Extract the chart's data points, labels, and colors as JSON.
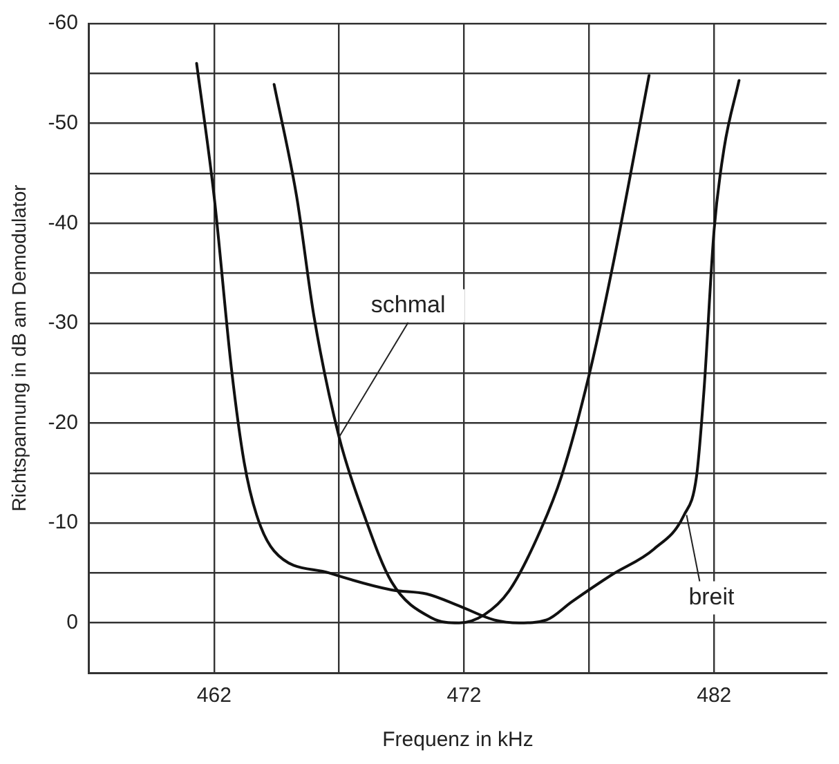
{
  "chart_data": {
    "type": "line",
    "xlabel": "Frequenz in kHz",
    "ylabel": "Richtspannung in dB am Demodulator",
    "xlim": [
      457,
      486.5
    ],
    "xticks": [
      462,
      {
        "value": 467,
        "label": null
      },
      472,
      {
        "value": 477,
        "label": null
      },
      482
    ],
    "ylim": [
      5,
      -60
    ],
    "yticks": [
      {
        "value": 5,
        "label": null
      },
      0,
      {
        "value": -5,
        "label": null
      },
      -10,
      {
        "value": -15,
        "label": null
      },
      -20,
      {
        "value": -25,
        "label": null
      },
      -30,
      {
        "value": -35,
        "label": null
      },
      -40,
      {
        "value": -45,
        "label": null
      },
      -50,
      {
        "value": -55,
        "label": null
      },
      -60
    ],
    "grid": true,
    "legend": false,
    "marker": "none",
    "line_style": "solid",
    "series": [
      {
        "color": "#111111",
        "x": [
          461.3,
          462,
          462.7,
          463.2,
          463.7,
          464.4,
          466.6,
          469.1,
          470.5,
          471.8,
          473.2,
          474.2,
          475.3,
          476.3,
          477.9,
          479.6,
          480.8,
          481.3,
          481.6,
          482,
          482.4,
          483
        ],
        "values": [
          -56,
          -42.7,
          -25.3,
          -16.1,
          -10.8,
          -7.2,
          -5,
          -3.3,
          -2.9,
          -1.7,
          -0.3,
          0,
          -0.3,
          -2.1,
          -4.8,
          -7.4,
          -10.8,
          -14.7,
          -23.4,
          -39.3,
          -47.5,
          -54.3
        ]
      },
      {
        "color": "#111111",
        "x": [
          464.4,
          465.3,
          466,
          467,
          468,
          469.1,
          470.7,
          471.8,
          472.8,
          473.8,
          474.9,
          475.9,
          477,
          478,
          479.4
        ],
        "values": [
          -53.9,
          -42.7,
          -30.6,
          -18.6,
          -10.8,
          -4.1,
          -0.5,
          0,
          -0.8,
          -3.2,
          -8.4,
          -14.7,
          -24.8,
          -36.4,
          -54.8
        ]
      }
    ],
    "annotations": [
      {
        "text": "schmal",
        "x": 467,
        "y": -18.6
      },
      {
        "text": "breit",
        "x": 480.9,
        "y": -10.8
      }
    ]
  }
}
